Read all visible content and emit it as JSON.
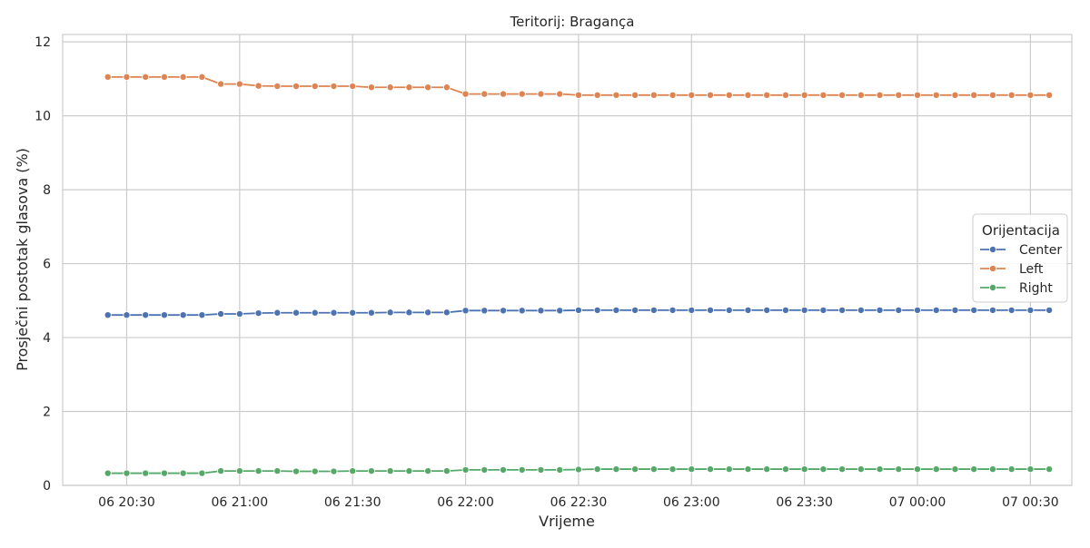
{
  "chart_data": {
    "type": "line",
    "title": "Teritorij: Bragança",
    "xlabel": "Vrijeme",
    "ylabel": "Prosječni postotak glasova (%)",
    "ylim": [
      0,
      12.2
    ],
    "y_ticks": [
      0,
      2,
      4,
      6,
      8,
      10,
      12
    ],
    "x_range": [
      "2023-03-06 20:13",
      "2023-03-07 00:41"
    ],
    "x_ticks": [
      {
        "t": "2023-03-06 20:30",
        "label": "06 20:30"
      },
      {
        "t": "2023-03-06 21:00",
        "label": "06 21:00"
      },
      {
        "t": "2023-03-06 21:30",
        "label": "06 21:30"
      },
      {
        "t": "2023-03-06 22:00",
        "label": "06 22:00"
      },
      {
        "t": "2023-03-06 22:30",
        "label": "06 22:30"
      },
      {
        "t": "2023-03-06 23:00",
        "label": "06 23:00"
      },
      {
        "t": "2023-03-06 23:30",
        "label": "06 23:30"
      },
      {
        "t": "2023-03-07 00:00",
        "label": "07 00:00"
      },
      {
        "t": "2023-03-07 00:30",
        "label": "07 00:30"
      }
    ],
    "x": [
      "2023-03-06 20:25",
      "2023-03-06 20:30",
      "2023-03-06 20:35",
      "2023-03-06 20:40",
      "2023-03-06 20:45",
      "2023-03-06 20:50",
      "2023-03-06 20:55",
      "2023-03-06 21:00",
      "2023-03-06 21:05",
      "2023-03-06 21:10",
      "2023-03-06 21:15",
      "2023-03-06 21:20",
      "2023-03-06 21:25",
      "2023-03-06 21:30",
      "2023-03-06 21:35",
      "2023-03-06 21:40",
      "2023-03-06 21:45",
      "2023-03-06 21:50",
      "2023-03-06 21:55",
      "2023-03-06 22:00",
      "2023-03-06 22:05",
      "2023-03-06 22:10",
      "2023-03-06 22:15",
      "2023-03-06 22:20",
      "2023-03-06 22:25",
      "2023-03-06 22:30",
      "2023-03-06 22:35",
      "2023-03-06 22:40",
      "2023-03-06 22:45",
      "2023-03-06 22:50",
      "2023-03-06 22:55",
      "2023-03-06 23:00",
      "2023-03-06 23:05",
      "2023-03-06 23:10",
      "2023-03-06 23:15",
      "2023-03-06 23:20",
      "2023-03-06 23:25",
      "2023-03-06 23:30",
      "2023-03-06 23:35",
      "2023-03-06 23:40",
      "2023-03-06 23:45",
      "2023-03-06 23:50",
      "2023-03-06 23:55",
      "2023-03-07 00:00",
      "2023-03-07 00:05",
      "2023-03-07 00:10",
      "2023-03-07 00:15",
      "2023-03-07 00:20",
      "2023-03-07 00:25",
      "2023-03-07 00:30",
      "2023-03-07 00:35"
    ],
    "series": [
      {
        "name": "Center",
        "color": "#4c72b0",
        "values": [
          4.61,
          4.61,
          4.61,
          4.61,
          4.61,
          4.61,
          4.64,
          4.64,
          4.66,
          4.67,
          4.67,
          4.67,
          4.67,
          4.67,
          4.67,
          4.68,
          4.68,
          4.68,
          4.68,
          4.73,
          4.73,
          4.73,
          4.73,
          4.73,
          4.73,
          4.74,
          4.74,
          4.74,
          4.74,
          4.74,
          4.74,
          4.74,
          4.74,
          4.74,
          4.74,
          4.74,
          4.74,
          4.74,
          4.74,
          4.74,
          4.74,
          4.74,
          4.74,
          4.74,
          4.74,
          4.74,
          4.74,
          4.74,
          4.74,
          4.74,
          4.74
        ]
      },
      {
        "name": "Left",
        "color": "#dd8452",
        "values": [
          11.05,
          11.05,
          11.05,
          11.05,
          11.05,
          11.05,
          10.86,
          10.86,
          10.81,
          10.8,
          10.8,
          10.8,
          10.8,
          10.8,
          10.77,
          10.77,
          10.77,
          10.77,
          10.77,
          10.59,
          10.59,
          10.59,
          10.59,
          10.59,
          10.59,
          10.56,
          10.56,
          10.56,
          10.56,
          10.56,
          10.56,
          10.56,
          10.56,
          10.56,
          10.56,
          10.56,
          10.56,
          10.56,
          10.56,
          10.56,
          10.56,
          10.56,
          10.56,
          10.56,
          10.56,
          10.56,
          10.56,
          10.56,
          10.56,
          10.56,
          10.56
        ]
      },
      {
        "name": "Right",
        "color": "#55a868",
        "values": [
          0.33,
          0.33,
          0.33,
          0.33,
          0.33,
          0.33,
          0.39,
          0.39,
          0.39,
          0.39,
          0.38,
          0.38,
          0.38,
          0.39,
          0.39,
          0.39,
          0.39,
          0.39,
          0.39,
          0.42,
          0.42,
          0.42,
          0.42,
          0.42,
          0.42,
          0.43,
          0.44,
          0.44,
          0.44,
          0.44,
          0.44,
          0.44,
          0.44,
          0.44,
          0.44,
          0.44,
          0.44,
          0.44,
          0.44,
          0.44,
          0.44,
          0.44,
          0.44,
          0.44,
          0.44,
          0.44,
          0.44,
          0.44,
          0.44,
          0.44,
          0.44
        ]
      }
    ],
    "legend": {
      "title": "Orijentacija",
      "placement": "center-right"
    },
    "grid": true
  }
}
